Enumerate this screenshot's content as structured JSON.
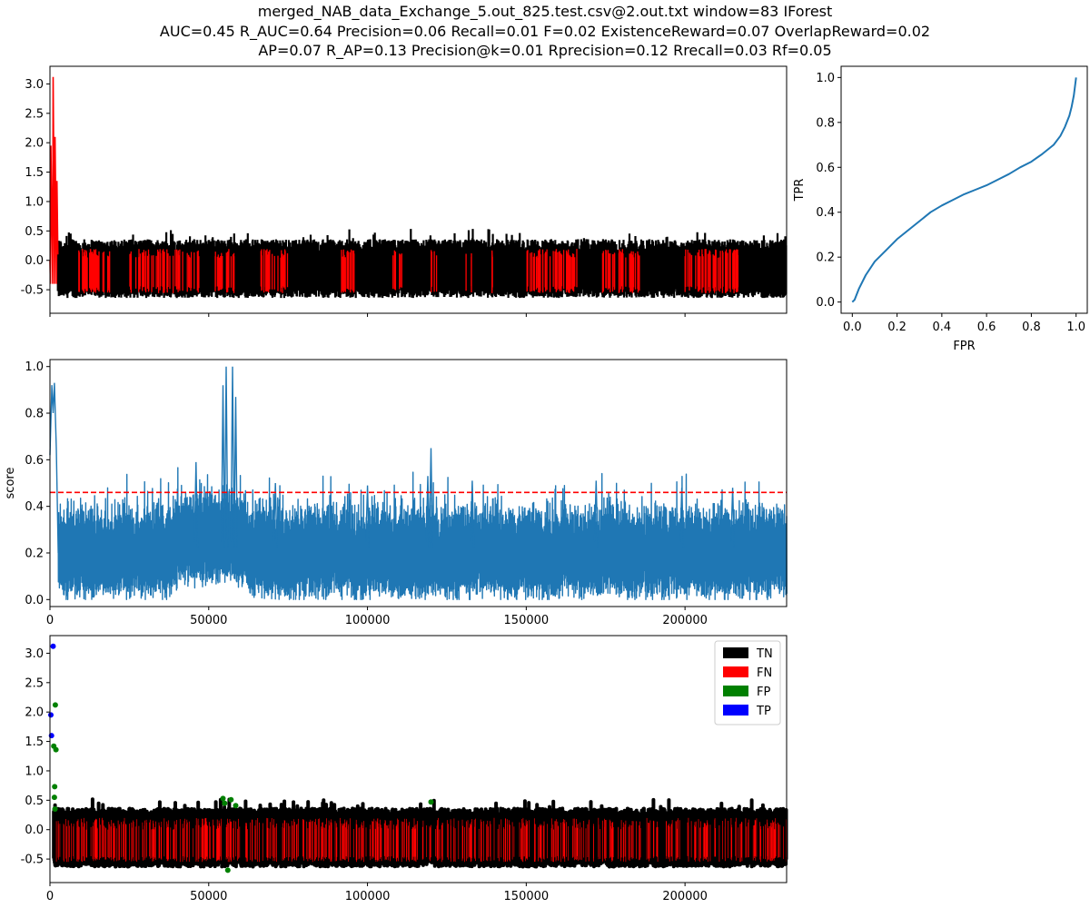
{
  "title": {
    "line1": "merged_NAB_data_Exchange_5.out_825.test.csv@2.out.txt    window=83   IForest",
    "line2": "AUC=0.45     R_AUC=0.64     Precision=0.06     Recall=0.01     F=0.02     ExistenceReward=0.07   OverlapReward=0.02",
    "line3": "AP=0.07     R_AP=0.13     Precision@k=0.01     Rprecision=0.12     Rrecall=0.03    Rf=0.05"
  },
  "colors": {
    "normal": "#000000",
    "anomaly": "#ff0000",
    "score": "#1f77b4",
    "threshold": "#ff0000",
    "tn": "#000000",
    "fn": "#ff0000",
    "fp": "#008000",
    "tp": "#0000ff"
  },
  "chart_data": [
    {
      "type": "line",
      "panel": "series",
      "xlim": [
        0,
        232000
      ],
      "ylim": [
        -0.9,
        3.3
      ],
      "yticks": [
        "3.0",
        "2.5",
        "2.0",
        "1.5",
        "1.0",
        "0.5",
        "0.0",
        "-0.5"
      ],
      "ytick_values": [
        3.0,
        2.5,
        2.0,
        1.5,
        1.0,
        0.5,
        0.0,
        -0.5
      ],
      "xtick_values": [
        0,
        50000,
        100000,
        150000,
        200000
      ],
      "band": {
        "low": -0.55,
        "high": 0.25
      },
      "spikes": [
        {
          "x": 300,
          "y": 1.95
        },
        {
          "x": 1000,
          "y": 3.12
        },
        {
          "x": 1600,
          "y": 2.1
        },
        {
          "x": 2200,
          "y": 1.35
        }
      ],
      "anomaly_segments": [
        [
          300,
          2500
        ],
        [
          9000,
          19000
        ],
        [
          25000,
          47000
        ],
        [
          52000,
          58000
        ],
        [
          66000,
          75000
        ],
        [
          90000,
          96000
        ],
        [
          108000,
          111000
        ],
        [
          120000,
          122000
        ],
        [
          131000,
          133000
        ],
        [
          139000,
          141000
        ],
        [
          150000,
          166000
        ],
        [
          174000,
          186000
        ],
        [
          200000,
          217000
        ]
      ]
    },
    {
      "type": "line",
      "panel": "score",
      "ylabel": "score",
      "xlim": [
        0,
        232000
      ],
      "ylim": [
        -0.03,
        1.03
      ],
      "yticks": [
        "1.0",
        "0.8",
        "0.6",
        "0.4",
        "0.2",
        "0.0"
      ],
      "ytick_values": [
        1.0,
        0.8,
        0.6,
        0.4,
        0.2,
        0.0
      ],
      "xticks": [
        "0",
        "50000",
        "100000",
        "150000",
        "200000"
      ],
      "xtick_values": [
        0,
        50000,
        100000,
        150000,
        200000
      ],
      "threshold": 0.46,
      "peaks": [
        {
          "x": 600,
          "y": 0.92
        },
        {
          "x": 1400,
          "y": 0.93
        },
        {
          "x": 46000,
          "y": 0.59
        },
        {
          "x": 54500,
          "y": 0.92
        },
        {
          "x": 55500,
          "y": 1.0
        },
        {
          "x": 57500,
          "y": 1.0
        },
        {
          "x": 58500,
          "y": 0.87
        },
        {
          "x": 71000,
          "y": 0.5
        },
        {
          "x": 100000,
          "y": 0.49
        },
        {
          "x": 119000,
          "y": 0.53
        },
        {
          "x": 120000,
          "y": 0.65
        },
        {
          "x": 133000,
          "y": 0.51
        },
        {
          "x": 172000,
          "y": 0.51
        },
        {
          "x": 199000,
          "y": 0.48
        },
        {
          "x": 215000,
          "y": 0.48
        }
      ]
    },
    {
      "type": "scatter",
      "panel": "classification",
      "xlim": [
        0,
        232000
      ],
      "ylim": [
        -0.9,
        3.3
      ],
      "yticks": [
        "3.0",
        "2.5",
        "2.0",
        "1.5",
        "1.0",
        "0.5",
        "0.0",
        "-0.5"
      ],
      "ytick_values": [
        3.0,
        2.5,
        2.0,
        1.5,
        1.0,
        0.5,
        0.0,
        -0.5
      ],
      "xticks": [
        "0",
        "50000",
        "100000",
        "150000",
        "200000"
      ],
      "xtick_values": [
        0,
        50000,
        100000,
        150000,
        200000
      ],
      "legend": [
        "TN",
        "FN",
        "FP",
        "TP"
      ],
      "legend_position": "top-right",
      "tp_points": [
        {
          "x": 1000,
          "y": 3.12
        },
        {
          "x": 300,
          "y": 1.95
        },
        {
          "x": 500,
          "y": 1.6
        }
      ],
      "fp_points": [
        {
          "x": 1700,
          "y": 2.12
        },
        {
          "x": 1200,
          "y": 1.42
        },
        {
          "x": 1900,
          "y": 1.36
        },
        {
          "x": 1500,
          "y": 0.73
        },
        {
          "x": 1400,
          "y": 0.55
        },
        {
          "x": 1600,
          "y": 0.35
        },
        {
          "x": 54500,
          "y": 0.53
        },
        {
          "x": 55000,
          "y": 0.45
        },
        {
          "x": 57000,
          "y": 0.51
        },
        {
          "x": 58500,
          "y": 0.41
        },
        {
          "x": 56000,
          "y": -0.69
        },
        {
          "x": 120000,
          "y": 0.47
        }
      ]
    },
    {
      "type": "line",
      "panel": "roc",
      "xlabel": "FPR",
      "ylabel": "TPR",
      "xlim": [
        -0.05,
        1.05
      ],
      "ylim": [
        -0.05,
        1.05
      ],
      "xticks": [
        "0.0",
        "0.2",
        "0.4",
        "0.6",
        "0.8",
        "1.0"
      ],
      "xtick_values": [
        0.0,
        0.2,
        0.4,
        0.6,
        0.8,
        1.0
      ],
      "yticks": [
        "1.0",
        "0.8",
        "0.6",
        "0.4",
        "0.2",
        "0.0"
      ],
      "ytick_values": [
        1.0,
        0.8,
        0.6,
        0.4,
        0.2,
        0.0
      ],
      "x": [
        0.0,
        0.01,
        0.03,
        0.06,
        0.1,
        0.15,
        0.2,
        0.25,
        0.3,
        0.35,
        0.4,
        0.45,
        0.5,
        0.55,
        0.6,
        0.65,
        0.7,
        0.75,
        0.8,
        0.85,
        0.9,
        0.93,
        0.95,
        0.97,
        0.98,
        0.99,
        1.0
      ],
      "y": [
        0.0,
        0.01,
        0.06,
        0.12,
        0.18,
        0.23,
        0.28,
        0.32,
        0.36,
        0.4,
        0.43,
        0.455,
        0.48,
        0.5,
        0.52,
        0.545,
        0.57,
        0.6,
        0.625,
        0.66,
        0.7,
        0.74,
        0.78,
        0.83,
        0.87,
        0.92,
        1.0
      ]
    }
  ]
}
